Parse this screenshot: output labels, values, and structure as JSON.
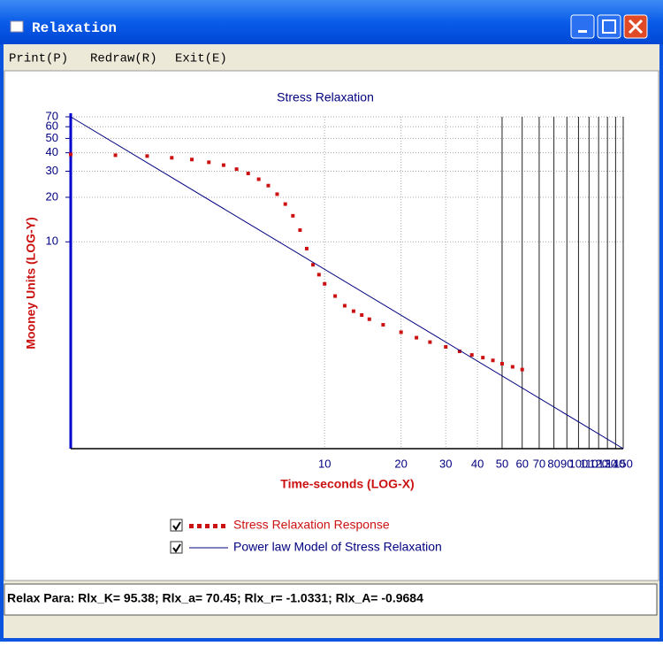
{
  "window": {
    "title": "Relaxation"
  },
  "menu": [
    "Print(P)",
    "Redraw(R)",
    "Exit(E)"
  ],
  "status": "Relax Para: Rlx_K= 95.38; Rlx_a= 70.45;  Rlx_r= -1.0331;  Rlx_A= -0.9684",
  "chart_data": {
    "type": "line",
    "title": "Stress Relaxation",
    "x_label": "Time-seconds (LOG-X)",
    "y_label": "Mooney Units (LOG-Y)",
    "x_log": true,
    "y_log": true,
    "grid": true,
    "xlim": [
      1,
      150
    ],
    "ylim": [
      0.4,
      70
    ],
    "xticks": [
      10,
      20,
      30,
      40,
      50,
      60,
      70,
      80,
      90,
      100,
      110,
      120,
      130,
      140,
      150
    ],
    "yticks": [
      10,
      20,
      30,
      40,
      50,
      60,
      70
    ],
    "series": [
      {
        "name": "Stress Relaxation Response",
        "color": "#cc1111",
        "style": "markers",
        "x": [
          1,
          1.5,
          2,
          2.5,
          3,
          3.5,
          4,
          4.5,
          5,
          5.5,
          6,
          6.5,
          7,
          7.5,
          8,
          8.5,
          9,
          9.5,
          10,
          11,
          12,
          13,
          14,
          15,
          17,
          20,
          23,
          26,
          30,
          34,
          38,
          42,
          46,
          50,
          55,
          60
        ],
        "values": [
          39,
          38.5,
          38,
          37,
          36,
          34.5,
          33,
          31,
          29,
          26.5,
          24,
          21,
          18,
          15,
          12,
          9,
          7,
          6,
          5.2,
          4.3,
          3.7,
          3.4,
          3.2,
          3.0,
          2.75,
          2.45,
          2.25,
          2.1,
          1.95,
          1.82,
          1.72,
          1.65,
          1.58,
          1.5,
          1.43,
          1.37
        ]
      },
      {
        "name": "Power law Model of Stress Relaxation",
        "color": "#000080",
        "style": "line",
        "x": [
          1,
          150
        ],
        "values": [
          70,
          0.4
        ]
      }
    ]
  }
}
